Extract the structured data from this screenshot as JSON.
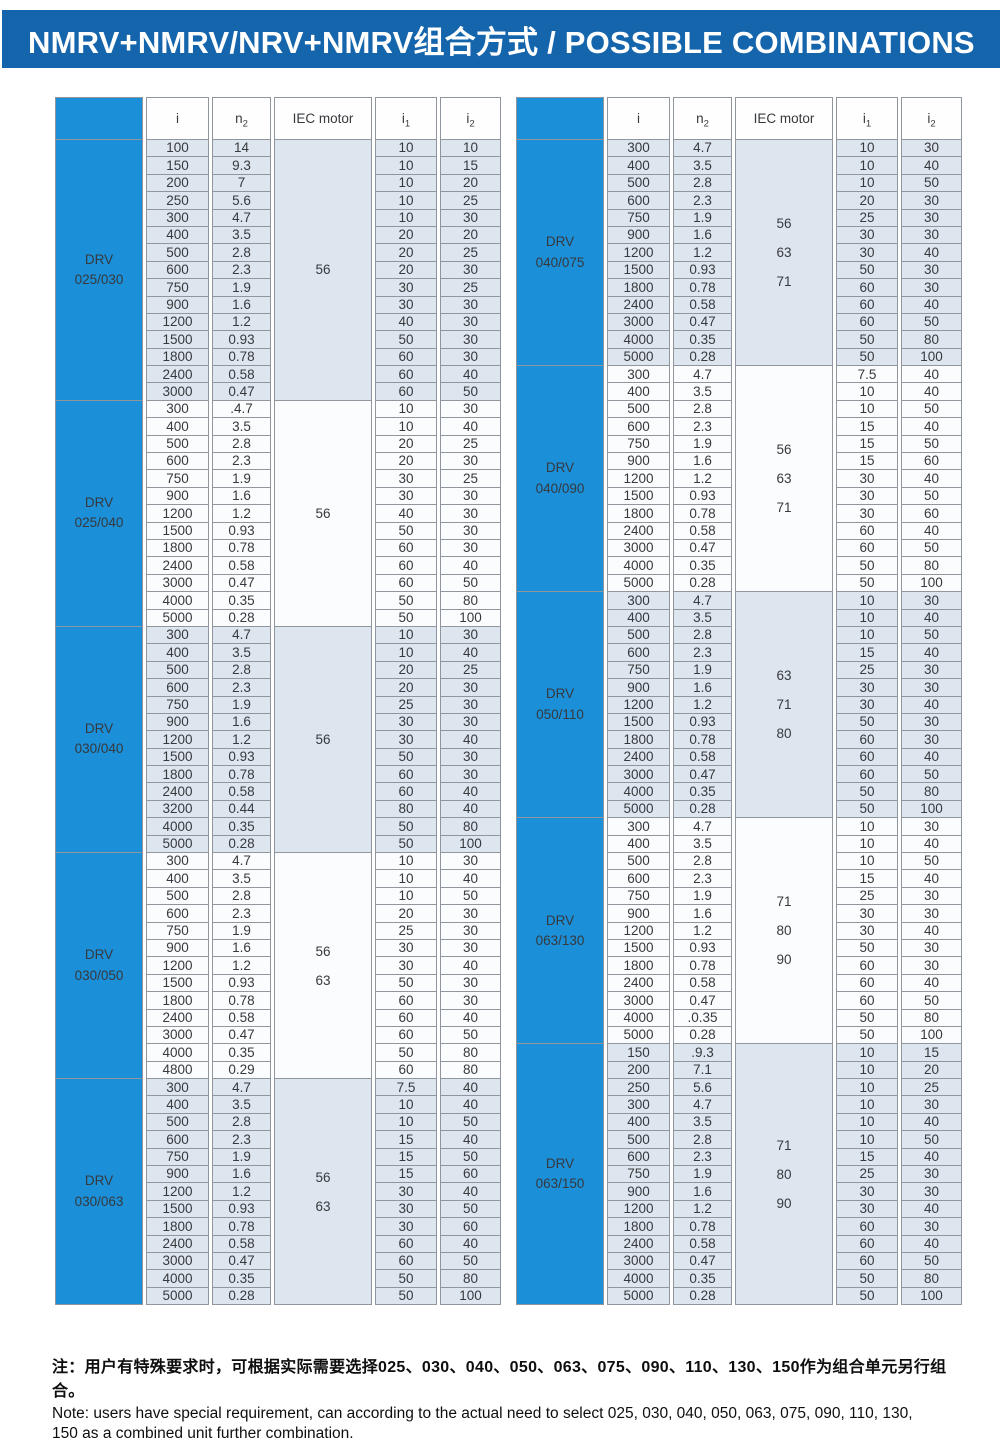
{
  "title": "NMRV+NMRV/NRV+NMRV组合方式 / POSSIBLE COMBINATIONS",
  "headers": [
    {
      "base": "i",
      "sub": ""
    },
    {
      "base": "n",
      "sub": "2"
    },
    {
      "base": "IEC motor",
      "sub": ""
    },
    {
      "base": "i",
      "sub": "1"
    },
    {
      "base": "i",
      "sub": "2"
    }
  ],
  "colors": {
    "title_bar_blue": "#1565ad",
    "group_cell_blue": "#1b8fd8",
    "row_shaded": "#dde6ee",
    "row_plain": "#fbfcfd",
    "grid_line": "#8f969e"
  },
  "tables": [
    {
      "groups": [
        {
          "model": [
            "DRV",
            "025/030"
          ],
          "iec_motor": [
            "56"
          ],
          "shaded": true,
          "rows": [
            [
              "100",
              "14",
              "10",
              "10"
            ],
            [
              "150",
              "9.3",
              "10",
              "15"
            ],
            [
              "200",
              "7",
              "10",
              "20"
            ],
            [
              "250",
              "5.6",
              "10",
              "25"
            ],
            [
              "300",
              "4.7",
              "10",
              "30"
            ],
            [
              "400",
              "3.5",
              "20",
              "20"
            ],
            [
              "500",
              "2.8",
              "20",
              "25"
            ],
            [
              "600",
              "2.3",
              "20",
              "30"
            ],
            [
              "750",
              "1.9",
              "30",
              "25"
            ],
            [
              "900",
              "1.6",
              "30",
              "30"
            ],
            [
              "1200",
              "1.2",
              "40",
              "30"
            ],
            [
              "1500",
              "0.93",
              "50",
              "30"
            ],
            [
              "1800",
              "0.78",
              "60",
              "30"
            ],
            [
              "2400",
              "0.58",
              "60",
              "40"
            ],
            [
              "3000",
              "0.47",
              "60",
              "50"
            ]
          ]
        },
        {
          "model": [
            "DRV",
            "025/040"
          ],
          "iec_motor": [
            "56"
          ],
          "shaded": false,
          "rows": [
            [
              "300",
              ".4.7",
              "10",
              "30"
            ],
            [
              "400",
              "3.5",
              "10",
              "40"
            ],
            [
              "500",
              "2.8",
              "20",
              "25"
            ],
            [
              "600",
              "2.3",
              "20",
              "30"
            ],
            [
              "750",
              "1.9",
              "30",
              "25"
            ],
            [
              "900",
              "1.6",
              "30",
              "30"
            ],
            [
              "1200",
              "1.2",
              "40",
              "30"
            ],
            [
              "1500",
              "0.93",
              "50",
              "30"
            ],
            [
              "1800",
              "0.78",
              "60",
              "30"
            ],
            [
              "2400",
              "0.58",
              "60",
              "40"
            ],
            [
              "3000",
              "0.47",
              "60",
              "50"
            ],
            [
              "4000",
              "0.35",
              "50",
              "80"
            ],
            [
              "5000",
              "0.28",
              "50",
              "100"
            ]
          ]
        },
        {
          "model": [
            "DRV",
            "030/040"
          ],
          "iec_motor": [
            "56"
          ],
          "shaded": true,
          "rows": [
            [
              "300",
              "4.7",
              "10",
              "30"
            ],
            [
              "400",
              "3.5",
              "10",
              "40"
            ],
            [
              "500",
              "2.8",
              "20",
              "25"
            ],
            [
              "600",
              "2.3",
              "20",
              "30"
            ],
            [
              "750",
              "1.9",
              "25",
              "30"
            ],
            [
              "900",
              "1.6",
              "30",
              "30"
            ],
            [
              "1200",
              "1.2",
              "30",
              "40"
            ],
            [
              "1500",
              "0.93",
              "50",
              "30"
            ],
            [
              "1800",
              "0.78",
              "60",
              "30"
            ],
            [
              "2400",
              "0.58",
              "60",
              "40"
            ],
            [
              "3200",
              "0.44",
              "80",
              "40"
            ],
            [
              "4000",
              "0.35",
              "50",
              "80"
            ],
            [
              "5000",
              "0.28",
              "50",
              "100"
            ]
          ]
        },
        {
          "model": [
            "DRV",
            "030/050"
          ],
          "iec_motor": [
            "56",
            "63"
          ],
          "shaded": false,
          "rows": [
            [
              "300",
              "4.7",
              "10",
              "30"
            ],
            [
              "400",
              "3.5",
              "10",
              "40"
            ],
            [
              "500",
              "2.8",
              "10",
              "50"
            ],
            [
              "600",
              "2.3",
              "20",
              "30"
            ],
            [
              "750",
              "1.9",
              "25",
              "30"
            ],
            [
              "900",
              "1.6",
              "30",
              "30"
            ],
            [
              "1200",
              "1.2",
              "30",
              "40"
            ],
            [
              "1500",
              "0.93",
              "50",
              "30"
            ],
            [
              "1800",
              "0.78",
              "60",
              "30"
            ],
            [
              "2400",
              "0.58",
              "60",
              "40"
            ],
            [
              "3000",
              "0.47",
              "60",
              "50"
            ],
            [
              "4000",
              "0.35",
              "50",
              "80"
            ],
            [
              "4800",
              "0.29",
              "60",
              "80"
            ]
          ]
        },
        {
          "model": [
            "DRV",
            "030/063"
          ],
          "iec_motor": [
            "56",
            "63"
          ],
          "shaded": true,
          "rows": [
            [
              "300",
              "4.7",
              "7.5",
              "40"
            ],
            [
              "400",
              "3.5",
              "10",
              "40"
            ],
            [
              "500",
              "2.8",
              "10",
              "50"
            ],
            [
              "600",
              "2.3",
              "15",
              "40"
            ],
            [
              "750",
              "1.9",
              "15",
              "50"
            ],
            [
              "900",
              "1.6",
              "15",
              "60"
            ],
            [
              "1200",
              "1.2",
              "30",
              "40"
            ],
            [
              "1500",
              "0.93",
              "30",
              "50"
            ],
            [
              "1800",
              "0.78",
              "30",
              "60"
            ],
            [
              "2400",
              "0.58",
              "60",
              "40"
            ],
            [
              "3000",
              "0.47",
              "60",
              "50"
            ],
            [
              "4000",
              "0.35",
              "50",
              "80"
            ],
            [
              "5000",
              "0.28",
              "50",
              "100"
            ]
          ]
        }
      ]
    },
    {
      "groups": [
        {
          "model": [
            "DRV",
            "040/075"
          ],
          "iec_motor": [
            "56",
            "63",
            "71"
          ],
          "shaded": true,
          "rows": [
            [
              "300",
              "4.7",
              "10",
              "30"
            ],
            [
              "400",
              "3.5",
              "10",
              "40"
            ],
            [
              "500",
              "2.8",
              "10",
              "50"
            ],
            [
              "600",
              "2.3",
              "20",
              "30"
            ],
            [
              "750",
              "1.9",
              "25",
              "30"
            ],
            [
              "900",
              "1.6",
              "30",
              "30"
            ],
            [
              "1200",
              "1.2",
              "30",
              "40"
            ],
            [
              "1500",
              "0.93",
              "50",
              "30"
            ],
            [
              "1800",
              "0.78",
              "60",
              "30"
            ],
            [
              "2400",
              "0.58",
              "60",
              "40"
            ],
            [
              "3000",
              "0.47",
              "60",
              "50"
            ],
            [
              "4000",
              "0.35",
              "50",
              "80"
            ],
            [
              "5000",
              "0.28",
              "50",
              "100"
            ]
          ]
        },
        {
          "model": [
            "DRV",
            "040/090"
          ],
          "iec_motor": [
            "56",
            "63",
            "71"
          ],
          "shaded": false,
          "rows": [
            [
              "300",
              "4.7",
              "7.5",
              "40"
            ],
            [
              "400",
              "3.5",
              "10",
              "40"
            ],
            [
              "500",
              "2.8",
              "10",
              "50"
            ],
            [
              "600",
              "2.3",
              "15",
              "40"
            ],
            [
              "750",
              "1.9",
              "15",
              "50"
            ],
            [
              "900",
              "1.6",
              "15",
              "60"
            ],
            [
              "1200",
              "1.2",
              "30",
              "40"
            ],
            [
              "1500",
              "0.93",
              "30",
              "50"
            ],
            [
              "1800",
              "0.78",
              "30",
              "60"
            ],
            [
              "2400",
              "0.58",
              "60",
              "40"
            ],
            [
              "3000",
              "0.47",
              "60",
              "50"
            ],
            [
              "4000",
              "0.35",
              "50",
              "80"
            ],
            [
              "5000",
              "0.28",
              "50",
              "100"
            ]
          ]
        },
        {
          "model": [
            "DRV",
            "050/110"
          ],
          "iec_motor": [
            "63",
            "71",
            "80"
          ],
          "shaded": true,
          "rows": [
            [
              "300",
              "4.7",
              "10",
              "30"
            ],
            [
              "400",
              "3.5",
              "10",
              "40"
            ],
            [
              "500",
              "2.8",
              "10",
              "50"
            ],
            [
              "600",
              "2.3",
              "15",
              "40"
            ],
            [
              "750",
              "1.9",
              "25",
              "30"
            ],
            [
              "900",
              "1.6",
              "30",
              "30"
            ],
            [
              "1200",
              "1.2",
              "30",
              "40"
            ],
            [
              "1500",
              "0.93",
              "50",
              "30"
            ],
            [
              "1800",
              "0.78",
              "60",
              "30"
            ],
            [
              "2400",
              "0.58",
              "60",
              "40"
            ],
            [
              "3000",
              "0.47",
              "60",
              "50"
            ],
            [
              "4000",
              "0.35",
              "50",
              "80"
            ],
            [
              "5000",
              "0.28",
              "50",
              "100"
            ]
          ]
        },
        {
          "model": [
            "DRV",
            "063/130"
          ],
          "iec_motor": [
            "71",
            "80",
            "90"
          ],
          "shaded": false,
          "rows": [
            [
              "300",
              "4.7",
              "10",
              "30"
            ],
            [
              "400",
              "3.5",
              "10",
              "40"
            ],
            [
              "500",
              "2.8",
              "10",
              "50"
            ],
            [
              "600",
              "2.3",
              "15",
              "40"
            ],
            [
              "750",
              "1.9",
              "25",
              "30"
            ],
            [
              "900",
              "1.6",
              "30",
              "30"
            ],
            [
              "1200",
              "1.2",
              "30",
              "40"
            ],
            [
              "1500",
              "0.93",
              "50",
              "30"
            ],
            [
              "1800",
              "0.78",
              "60",
              "30"
            ],
            [
              "2400",
              "0.58",
              "60",
              "40"
            ],
            [
              "3000",
              "0.47",
              "60",
              "50"
            ],
            [
              "4000",
              ".0.35",
              "50",
              "80"
            ],
            [
              "5000",
              "0.28",
              "50",
              "100"
            ]
          ]
        },
        {
          "model": [
            "DRV",
            "063/150"
          ],
          "iec_motor": [
            "71",
            "80",
            "90"
          ],
          "shaded": true,
          "rows": [
            [
              "150",
              ".9.3",
              "10",
              "15"
            ],
            [
              "200",
              "7.1",
              "10",
              "20"
            ],
            [
              "250",
              "5.6",
              "10",
              "25"
            ],
            [
              "300",
              "4.7",
              "10",
              "30"
            ],
            [
              "400",
              "3.5",
              "10",
              "40"
            ],
            [
              "500",
              "2.8",
              "10",
              "50"
            ],
            [
              "600",
              "2.3",
              "15",
              "40"
            ],
            [
              "750",
              "1.9",
              "25",
              "30"
            ],
            [
              "900",
              "1.6",
              "30",
              "30"
            ],
            [
              "1200",
              "1.2",
              "30",
              "40"
            ],
            [
              "1800",
              "0.78",
              "60",
              "30"
            ],
            [
              "2400",
              "0.58",
              "60",
              "40"
            ],
            [
              "3000",
              "0.47",
              "60",
              "50"
            ],
            [
              "4000",
              "0.35",
              "50",
              "80"
            ],
            [
              "5000",
              "0.28",
              "50",
              "100"
            ]
          ]
        }
      ]
    }
  ],
  "note": {
    "chinese": "注：用户有特殊要求时，可根据实际需要选择025、030、040、050、063、075、090、110、130、150作为组合单元另行组合。",
    "english_line1": "Note: users have special requirement, can according to the actual need to select 025, 030, 040, 050, 063, 075, 090, 110, 130,",
    "english_line2": "150 as a combined unit further combination."
  }
}
